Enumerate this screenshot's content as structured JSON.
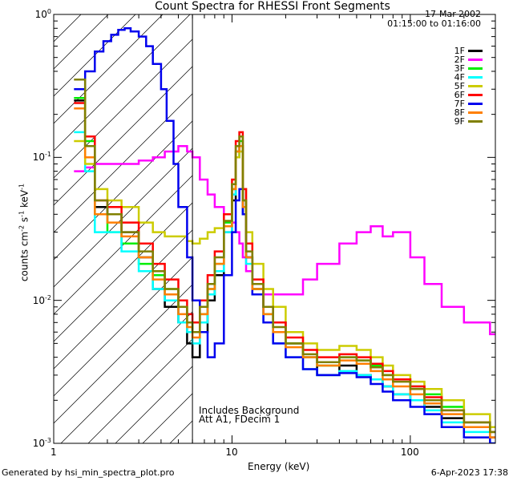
{
  "chart_data": {
    "type": "line",
    "title": "Count Spectra for RHESSI Front Segments",
    "xlabel": "Energy (keV)",
    "ylabel_main": "counts cm",
    "ylabel_sup1": "-2",
    "ylabel_mid": " s",
    "ylabel_sup2": "-1",
    "ylabel_end": " keV",
    "ylabel_sup3": "-1",
    "x_scale": "log",
    "y_scale": "log",
    "xlim": [
      1,
      300
    ],
    "ylim": [
      0.001,
      1
    ],
    "x_ticks": [
      {
        "value": 1,
        "label": "1"
      },
      {
        "value": 10,
        "label": "10"
      },
      {
        "value": 100,
        "label": "100"
      }
    ],
    "y_ticks": [
      {
        "value": 1,
        "label": "10",
        "exp": "0"
      },
      {
        "value": 0.1,
        "label": "10",
        "exp": "-1"
      },
      {
        "value": 0.01,
        "label": "10",
        "exp": "-2"
      },
      {
        "value": 0.001,
        "label": "10",
        "exp": "-3"
      }
    ],
    "hatched_region_below_kev": 6,
    "date": "17-Mar-2002",
    "time_range": "01:15:00 to 01:16:00",
    "annotation_1": "Includes Background",
    "annotation_2": "Att A1, FDecim 1",
    "series": [
      {
        "name": "1F",
        "color": "#000000",
        "x": [
          1.3,
          1.5,
          1.7,
          2,
          2.4,
          3,
          3.6,
          4.2,
          5,
          5.6,
          6,
          6.6,
          7.3,
          8,
          9,
          10,
          10.5,
          11,
          11.5,
          12,
          13,
          15,
          17,
          20,
          25,
          30,
          40,
          50,
          60,
          70,
          80,
          100,
          120,
          150,
          200,
          280
        ],
        "y": [
          0.25,
          0.12,
          0.045,
          0.04,
          0.03,
          0.02,
          0.012,
          0.009,
          0.007,
          0.005,
          0.004,
          0.006,
          0.01,
          0.015,
          0.03,
          0.05,
          0.1,
          0.12,
          0.04,
          0.02,
          0.012,
          0.009,
          0.007,
          0.005,
          0.004,
          0.003,
          0.0035,
          0.003,
          0.0028,
          0.0025,
          0.0022,
          0.002,
          0.0018,
          0.0015,
          0.0013,
          0.0011
        ]
      },
      {
        "name": "2F",
        "color": "#ff00ff",
        "x": [
          1.3,
          1.5,
          1.7,
          2,
          2.4,
          3,
          3.6,
          4.2,
          5,
          5.6,
          6,
          6.6,
          7.3,
          8,
          9,
          10,
          10.5,
          11,
          11.5,
          12,
          13,
          15,
          17,
          20,
          25,
          30,
          40,
          50,
          60,
          70,
          80,
          100,
          120,
          150,
          200,
          280
        ],
        "y": [
          0.08,
          0.085,
          0.09,
          0.09,
          0.09,
          0.095,
          0.1,
          0.11,
          0.12,
          0.11,
          0.1,
          0.07,
          0.055,
          0.045,
          0.04,
          0.035,
          0.03,
          0.025,
          0.02,
          0.016,
          0.013,
          0.011,
          0.011,
          0.011,
          0.014,
          0.018,
          0.025,
          0.03,
          0.033,
          0.028,
          0.03,
          0.02,
          0.013,
          0.009,
          0.007,
          0.0058
        ]
      },
      {
        "name": "3F",
        "color": "#00ee00",
        "x": [
          1.3,
          1.5,
          1.7,
          2,
          2.4,
          3,
          3.6,
          4.2,
          5,
          5.6,
          6,
          6.6,
          7.3,
          8,
          9,
          10,
          10.5,
          11,
          11.5,
          12,
          13,
          15,
          17,
          20,
          25,
          30,
          40,
          50,
          60,
          70,
          80,
          100,
          120,
          150,
          200,
          280
        ],
        "y": [
          0.26,
          0.13,
          0.04,
          0.03,
          0.025,
          0.018,
          0.015,
          0.012,
          0.009,
          0.007,
          0.006,
          0.008,
          0.012,
          0.018,
          0.035,
          0.06,
          0.11,
          0.13,
          0.05,
          0.02,
          0.012,
          0.008,
          0.006,
          0.005,
          0.004,
          0.0035,
          0.004,
          0.0038,
          0.0035,
          0.003,
          0.0028,
          0.0025,
          0.0022,
          0.0018,
          0.0014,
          0.0012
        ]
      },
      {
        "name": "4F",
        "color": "#00ffff",
        "x": [
          1.3,
          1.5,
          1.7,
          2,
          2.4,
          3,
          3.6,
          4.2,
          5,
          5.6,
          6,
          6.6,
          7.3,
          8,
          9,
          10,
          10.5,
          11,
          11.5,
          12,
          13,
          15,
          17,
          20,
          25,
          30,
          40,
          50,
          60,
          70,
          80,
          100,
          120,
          150,
          200,
          280
        ],
        "y": [
          0.15,
          0.08,
          0.03,
          0.03,
          0.022,
          0.016,
          0.012,
          0.01,
          0.007,
          0.006,
          0.005,
          0.007,
          0.011,
          0.016,
          0.03,
          0.055,
          0.1,
          0.11,
          0.04,
          0.018,
          0.011,
          0.007,
          0.005,
          0.004,
          0.0033,
          0.003,
          0.0032,
          0.003,
          0.0028,
          0.0025,
          0.0022,
          0.002,
          0.0017,
          0.0014,
          0.0012,
          0.001
        ]
      },
      {
        "name": "5F",
        "color": "#cccc00",
        "x": [
          1.3,
          1.5,
          1.7,
          2,
          2.4,
          3,
          3.6,
          4.2,
          5,
          5.6,
          6,
          6.6,
          7.3,
          8,
          9,
          10,
          10.5,
          11,
          11.5,
          12,
          13,
          15,
          17,
          20,
          25,
          30,
          40,
          50,
          60,
          70,
          80,
          100,
          120,
          150,
          200,
          280
        ],
        "y": [
          0.13,
          0.09,
          0.06,
          0.05,
          0.045,
          0.035,
          0.03,
          0.028,
          0.028,
          0.026,
          0.025,
          0.027,
          0.03,
          0.032,
          0.04,
          0.06,
          0.1,
          0.11,
          0.06,
          0.03,
          0.018,
          0.012,
          0.009,
          0.006,
          0.005,
          0.0045,
          0.0048,
          0.0045,
          0.004,
          0.0035,
          0.003,
          0.0027,
          0.0024,
          0.002,
          0.0016,
          0.0013
        ]
      },
      {
        "name": "6F",
        "color": "#ff0000",
        "x": [
          1.3,
          1.5,
          1.7,
          2,
          2.4,
          3,
          3.6,
          4.2,
          5,
          5.6,
          6,
          6.6,
          7.3,
          8,
          9,
          10,
          10.5,
          11,
          11.5,
          12,
          13,
          15,
          17,
          20,
          25,
          30,
          40,
          50,
          60,
          70,
          80,
          100,
          120,
          150,
          200,
          280
        ],
        "y": [
          0.24,
          0.14,
          0.05,
          0.045,
          0.035,
          0.025,
          0.018,
          0.014,
          0.01,
          0.008,
          0.007,
          0.01,
          0.015,
          0.022,
          0.04,
          0.07,
          0.13,
          0.15,
          0.06,
          0.025,
          0.014,
          0.009,
          0.007,
          0.0055,
          0.0045,
          0.004,
          0.0042,
          0.004,
          0.0036,
          0.0032,
          0.0028,
          0.0025,
          0.0021,
          0.0017,
          0.0014,
          0.0012
        ]
      },
      {
        "name": "7F",
        "color": "#0000ee",
        "x": [
          1.3,
          1.5,
          1.7,
          1.9,
          2.1,
          2.3,
          2.5,
          2.7,
          3,
          3.3,
          3.6,
          4,
          4.3,
          4.7,
          5,
          5.6,
          6,
          6.6,
          7.3,
          8,
          9,
          10,
          10.5,
          11,
          11.5,
          12,
          13,
          15,
          17,
          20,
          25,
          30,
          40,
          50,
          60,
          70,
          80,
          100,
          120,
          150,
          200,
          280
        ],
        "y": [
          0.3,
          0.4,
          0.55,
          0.65,
          0.72,
          0.78,
          0.8,
          0.76,
          0.7,
          0.6,
          0.45,
          0.3,
          0.18,
          0.09,
          0.045,
          0.02,
          0.01,
          0.006,
          0.004,
          0.005,
          0.015,
          0.03,
          0.05,
          0.06,
          0.04,
          0.02,
          0.011,
          0.007,
          0.005,
          0.004,
          0.0033,
          0.003,
          0.0031,
          0.0029,
          0.0026,
          0.0023,
          0.002,
          0.0018,
          0.0016,
          0.0013,
          0.0011,
          0.001
        ]
      },
      {
        "name": "8F",
        "color": "#ff7f00",
        "x": [
          1.3,
          1.5,
          1.7,
          2,
          2.4,
          3,
          3.6,
          4.2,
          5,
          5.6,
          6,
          6.6,
          7.3,
          8,
          9,
          10,
          10.5,
          11,
          11.5,
          12,
          13,
          15,
          17,
          20,
          25,
          30,
          40,
          50,
          60,
          70,
          80,
          100,
          120,
          150,
          200,
          280
        ],
        "y": [
          0.22,
          0.1,
          0.04,
          0.035,
          0.028,
          0.02,
          0.014,
          0.011,
          0.008,
          0.0065,
          0.0055,
          0.008,
          0.012,
          0.018,
          0.033,
          0.06,
          0.11,
          0.12,
          0.045,
          0.02,
          0.012,
          0.008,
          0.006,
          0.0047,
          0.004,
          0.0035,
          0.0038,
          0.0036,
          0.0032,
          0.0028,
          0.0025,
          0.0022,
          0.0019,
          0.0016,
          0.0013,
          0.0011
        ]
      },
      {
        "name": "9F",
        "color": "#808000",
        "x": [
          1.3,
          1.5,
          1.7,
          2,
          2.4,
          3,
          3.6,
          4.2,
          5,
          5.6,
          6,
          6.6,
          7.3,
          8,
          9,
          10,
          10.5,
          11,
          11.5,
          12,
          13,
          15,
          17,
          20,
          25,
          30,
          40,
          50,
          60,
          70,
          80,
          100,
          120,
          150,
          200,
          280
        ],
        "y": [
          0.35,
          0.12,
          0.05,
          0.04,
          0.03,
          0.022,
          0.016,
          0.012,
          0.009,
          0.007,
          0.006,
          0.009,
          0.013,
          0.02,
          0.036,
          0.065,
          0.12,
          0.14,
          0.05,
          0.022,
          0.013,
          0.009,
          0.0065,
          0.005,
          0.0042,
          0.0037,
          0.004,
          0.0038,
          0.0034,
          0.003,
          0.0027,
          0.0024,
          0.002,
          0.0017,
          0.0014,
          0.0012
        ]
      }
    ]
  },
  "footer": {
    "generated_by": "Generated by hsi_min_spectra_plot.pro",
    "timestamp": "6-Apr-2023 17:38"
  }
}
